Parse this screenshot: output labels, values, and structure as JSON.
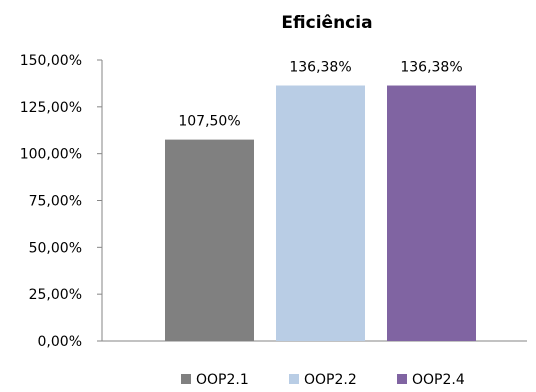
{
  "chart_data": {
    "type": "bar",
    "title": "Eficiência",
    "xlabel": "",
    "ylabel": "",
    "ylim": [
      0,
      1.5
    ],
    "yticks": [
      {
        "value": 0,
        "label": "0,00%"
      },
      {
        "value": 0.25,
        "label": "25,00%"
      },
      {
        "value": 0.5,
        "label": "50,00%"
      },
      {
        "value": 0.75,
        "label": "75,00%"
      },
      {
        "value": 1.0,
        "label": "100,00%"
      },
      {
        "value": 1.25,
        "label": "125,00%"
      },
      {
        "value": 1.5,
        "label": "150,00%"
      }
    ],
    "grid": false,
    "legend_position": "bottom",
    "series": [
      {
        "name": "OOP2.1",
        "value": 1.075,
        "label": "107,50%",
        "color": "#808080"
      },
      {
        "name": "OOP2.2",
        "value": 1.3638,
        "label": "136,38%",
        "color": "#b9cde5"
      },
      {
        "name": "OOP2.4",
        "value": 1.3638,
        "label": "136,38%",
        "color": "#8064a2"
      }
    ]
  }
}
